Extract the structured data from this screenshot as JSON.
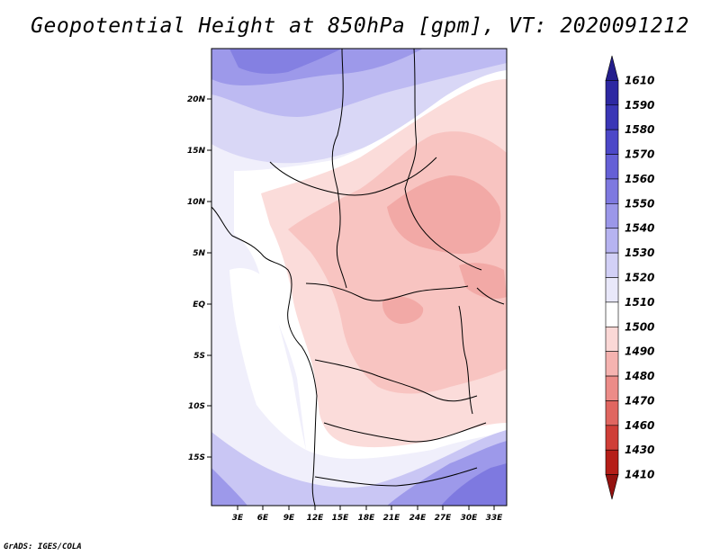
{
  "title": "Geopotential Height at 850hPa [gpm], VT: 2020091212",
  "credit": "GrADS: IGES/COLA",
  "map": {
    "lat_range": [
      -20,
      25
    ],
    "lon_range": [
      0,
      34
    ],
    "lat_labels": [
      "20N",
      "15N",
      "10N",
      "5N",
      "EQ",
      "5S",
      "10S",
      "15S"
    ],
    "lon_labels": [
      "3E",
      "6E",
      "9E",
      "12E",
      "15E",
      "18E",
      "21E",
      "24E",
      "27E",
      "30E",
      "33E"
    ]
  },
  "colorbar": {
    "levels": [
      "1610",
      "1590",
      "1580",
      "1570",
      "1560",
      "1550",
      "1540",
      "1530",
      "1520",
      "1510",
      "1500",
      "1490",
      "1480",
      "1470",
      "1460",
      "1430",
      "1410"
    ],
    "colors": [
      "#241e8c",
      "#2d28a2",
      "#3a36b6",
      "#4c48c8",
      "#6560d6",
      "#7e79e0",
      "#9b97e9",
      "#b6b3f0",
      "#d2d0f6",
      "#e9e8fa",
      "#ffffff",
      "#fbd8d6",
      "#f5b3b0",
      "#ec8c88",
      "#e06660",
      "#cf3e37",
      "#b51e18",
      "#941210"
    ]
  }
}
